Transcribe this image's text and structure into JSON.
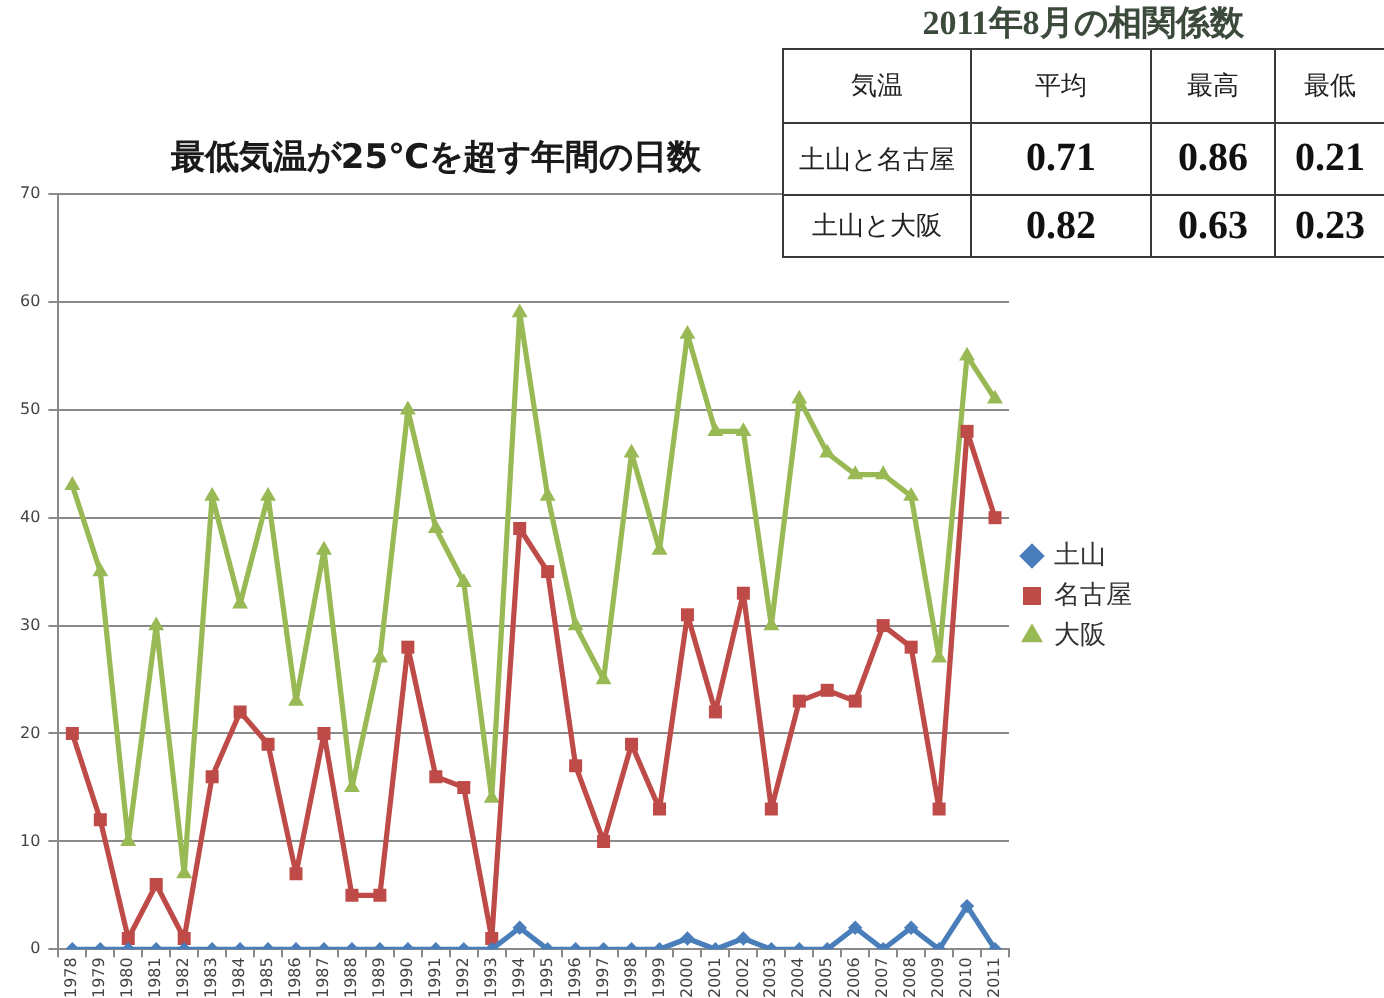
{
  "chart_data": [
    {
      "type": "line",
      "title": "最低気温が25℃を超す年間の日数",
      "categories": [
        "1978",
        "1979",
        "1980",
        "1981",
        "1982",
        "1983",
        "1984",
        "1985",
        "1986",
        "1987",
        "1988",
        "1989",
        "1990",
        "1991",
        "1992",
        "1993",
        "1994",
        "1995",
        "1996",
        "1997",
        "1998",
        "1999",
        "2000",
        "2001",
        "2002",
        "2003",
        "2004",
        "2005",
        "2006",
        "2007",
        "2008",
        "2009",
        "2010",
        "2011"
      ],
      "series": [
        {
          "name": "土山",
          "color": "#4a7ebb",
          "marker": "diamond",
          "values": [
            0,
            0,
            0,
            0,
            0,
            0,
            0,
            0,
            0,
            0,
            0,
            0,
            0,
            0,
            0,
            0,
            2,
            0,
            0,
            0,
            0,
            0,
            1,
            0,
            1,
            0,
            0,
            0,
            2,
            0,
            2,
            0,
            4,
            0
          ]
        },
        {
          "name": "名古屋",
          "color": "#be4b48",
          "marker": "square",
          "values": [
            20,
            12,
            1,
            6,
            1,
            16,
            22,
            19,
            7,
            20,
            5,
            5,
            28,
            16,
            15,
            1,
            39,
            35,
            17,
            10,
            19,
            13,
            31,
            22,
            33,
            13,
            23,
            24,
            23,
            30,
            28,
            13,
            48,
            40
          ]
        },
        {
          "name": "大阪",
          "color": "#98b954",
          "marker": "triangle",
          "values": [
            43,
            35,
            10,
            30,
            7,
            42,
            32,
            42,
            23,
            37,
            15,
            27,
            50,
            39,
            34,
            14,
            59,
            42,
            30,
            25,
            46,
            37,
            57,
            48,
            48,
            30,
            51,
            46,
            44,
            44,
            42,
            27,
            55,
            51
          ]
        }
      ],
      "ylim": [
        0,
        70
      ],
      "yticks": [
        0,
        10,
        20,
        30,
        40,
        50,
        60,
        70
      ],
      "grid": "y",
      "legend": "right"
    },
    {
      "type": "heatmap",
      "title": "2011年8月の相関係数",
      "annotations": [
        "気温"
      ],
      "categories": [
        "平均",
        "最高",
        "最低"
      ],
      "y_categories": [
        "土山と名古屋",
        "土山と大阪"
      ],
      "cells": [
        [
          0.71,
          0.86,
          0.21
        ],
        [
          0.82,
          0.63,
          0.23
        ]
      ],
      "data_labels": true
    }
  ]
}
